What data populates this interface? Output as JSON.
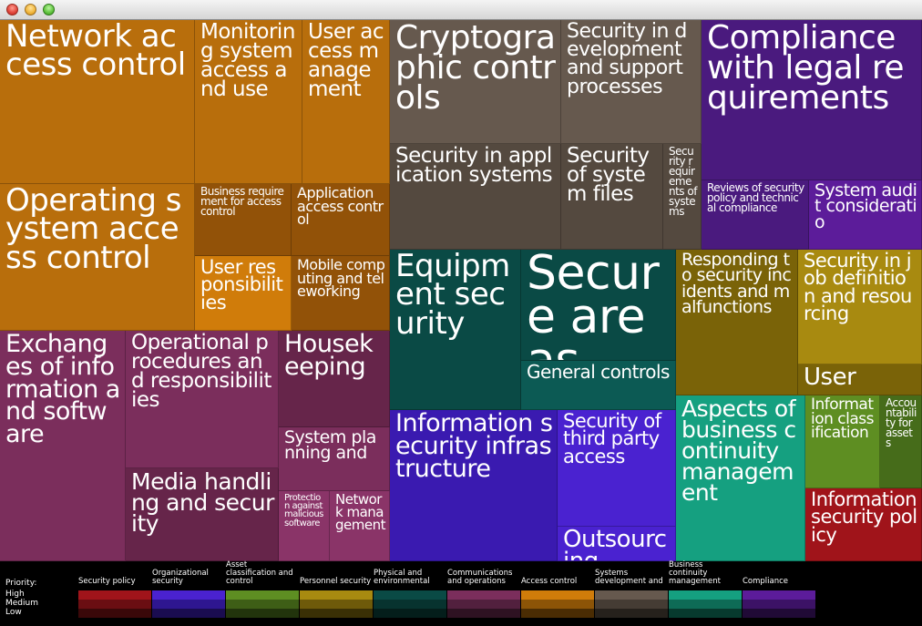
{
  "window": {
    "title": ""
  },
  "treemap": [
    {
      "label": "Network access control",
      "l": 0,
      "t": 0,
      "w": 214,
      "h": 180,
      "c": "#b86e0c",
      "fs": 34
    },
    {
      "label": "Operating system access control",
      "l": 0,
      "t": 180,
      "w": 214,
      "h": 161,
      "c": "#b86e0c",
      "fs": 34
    },
    {
      "label": "Monitoring system access and use",
      "l": 214,
      "t": 0,
      "w": 118,
      "h": 180,
      "c": "#b86e0c",
      "fs": 23
    },
    {
      "label": "User access management",
      "l": 332,
      "t": 0,
      "w": 96,
      "h": 180,
      "c": "#b86e0c",
      "fs": 23
    },
    {
      "label": "Business requirement for access control",
      "l": 214,
      "t": 180,
      "w": 106,
      "h": 79,
      "c": "#925208",
      "fs": 12
    },
    {
      "label": "Application access control",
      "l": 320,
      "t": 180,
      "w": 108,
      "h": 79,
      "c": "#925208",
      "fs": 16
    },
    {
      "label": "User responsibilities",
      "l": 214,
      "t": 259,
      "w": 106,
      "h": 82,
      "c": "#d07c0a",
      "fs": 21
    },
    {
      "label": "Mobile computing and teleworking",
      "l": 320,
      "t": 259,
      "w": 108,
      "h": 82,
      "c": "#925208",
      "fs": 16
    },
    {
      "label": "Exchanges of information and software",
      "l": 0,
      "t": 341,
      "w": 138,
      "h": 253,
      "c": "#7b2e5c",
      "fs": 27
    },
    {
      "label": "Operational procedures and responsibilities",
      "l": 138,
      "t": 341,
      "w": 168,
      "h": 151,
      "c": "#7b2e5c",
      "fs": 23
    },
    {
      "label": "Housekeeping",
      "l": 306,
      "t": 341,
      "w": 122,
      "h": 106,
      "c": "#66254a",
      "fs": 27
    },
    {
      "label": "System planning and",
      "l": 306,
      "t": 447,
      "w": 122,
      "h": 70,
      "c": "#7b2e5c",
      "fs": 19
    },
    {
      "label": "Media handling and security",
      "l": 138,
      "t": 492,
      "w": 168,
      "h": 102,
      "c": "#66254a",
      "fs": 25
    },
    {
      "label": "Protection against malicious software",
      "l": 306,
      "t": 517,
      "w": 56,
      "h": 77,
      "c": "#8a3468",
      "fs": 10
    },
    {
      "label": "Network management",
      "l": 362,
      "t": 517,
      "w": 66,
      "h": 77,
      "c": "#8a3468",
      "fs": 15
    },
    {
      "label": "Cryptographic controls",
      "l": 428,
      "t": 0,
      "w": 188,
      "h": 136,
      "c": "#66594e",
      "fs": 36
    },
    {
      "label": "Security in development and support processes",
      "l": 616,
      "t": 0,
      "w": 154,
      "h": 136,
      "c": "#66594e",
      "fs": 22
    },
    {
      "label": "Security in application systems",
      "l": 428,
      "t": 136,
      "w": 188,
      "h": 116,
      "c": "#54493f",
      "fs": 23
    },
    {
      "label": "Security of system files",
      "l": 616,
      "t": 136,
      "w": 112,
      "h": 116,
      "c": "#54493f",
      "fs": 23
    },
    {
      "label": "Security requirements of systems",
      "l": 728,
      "t": 136,
      "w": 42,
      "h": 116,
      "c": "#54493f",
      "fs": 12
    },
    {
      "label": "Compliance with legal requirements",
      "l": 770,
      "t": 0,
      "w": 242,
      "h": 176,
      "c": "#4a1a7e",
      "fs": 36
    },
    {
      "label": "Reviews of security policy and technical compliance",
      "l": 770,
      "t": 176,
      "w": 118,
      "h": 76,
      "c": "#4a1a7e",
      "fs": 12
    },
    {
      "label": "System audit consideratio",
      "l": 888,
      "t": 176,
      "w": 124,
      "h": 76,
      "c": "#5c1c9a",
      "fs": 19
    },
    {
      "label": "Equipment security",
      "l": 428,
      "t": 252,
      "w": 144,
      "h": 176,
      "c": "#0a4a45",
      "fs": 34
    },
    {
      "label": "Secure areas",
      "l": 572,
      "t": 252,
      "w": 170,
      "h": 122,
      "c": "#0a4a45",
      "fs": 52
    },
    {
      "label": "General controls",
      "l": 572,
      "t": 374,
      "w": 170,
      "h": 54,
      "c": "#0c5a54",
      "fs": 20
    },
    {
      "label": "Information security infrastructure",
      "l": 428,
      "t": 428,
      "w": 184,
      "h": 166,
      "c": "#3a1ab0",
      "fs": 27
    },
    {
      "label": "Security of third party access",
      "l": 612,
      "t": 428,
      "w": 130,
      "h": 128,
      "c": "#4a22d0",
      "fs": 21
    },
    {
      "label": "Outsourcing",
      "l": 612,
      "t": 556,
      "w": 130,
      "h": 38,
      "c": "#4a22d0",
      "fs": 26
    },
    {
      "label": "Responding to security incidents and malfunctions",
      "l": 742,
      "t": 252,
      "w": 134,
      "h": 160,
      "c": "#7a6308",
      "fs": 19
    },
    {
      "label": "Security in job definition and resourcing",
      "l": 876,
      "t": 252,
      "w": 136,
      "h": 126,
      "c": "#a88a10",
      "fs": 21
    },
    {
      "label": "User",
      "l": 876,
      "t": 378,
      "w": 136,
      "h": 34,
      "c": "#7a6308",
      "fs": 26
    },
    {
      "label": "Aspects of business continuity management",
      "l": 742,
      "t": 412,
      "w": 142,
      "h": 182,
      "c": "#15a080",
      "fs": 25
    },
    {
      "label": "Information classification",
      "l": 884,
      "t": 412,
      "w": 82,
      "h": 102,
      "c": "#5e8e22",
      "fs": 17
    },
    {
      "label": "Accountability for assets",
      "l": 966,
      "t": 412,
      "w": 46,
      "h": 102,
      "c": "#466c1a",
      "fs": 12
    },
    {
      "label": "Information security policy",
      "l": 884,
      "t": 514,
      "w": 128,
      "h": 80,
      "c": "#a0141a",
      "fs": 21
    }
  ],
  "legend": {
    "priority_label": "Priority:",
    "levels": [
      "High",
      "Medium",
      "Low"
    ],
    "categories": [
      {
        "name": "Security policy",
        "colors": [
          "#a0141a",
          "#6a0e12",
          "#3a0809"
        ]
      },
      {
        "name": "Organizational security",
        "colors": [
          "#4a22d0",
          "#2e1690",
          "#1a0c50"
        ]
      },
      {
        "name": "Asset classification and control",
        "colors": [
          "#5e8e22",
          "#3e5e16",
          "#22340c"
        ]
      },
      {
        "name": "Personnel security",
        "colors": [
          "#a88a10",
          "#6e5a0a",
          "#3a3005"
        ]
      },
      {
        "name": "Physical and environmental",
        "colors": [
          "#0a4a45",
          "#07332f",
          "#041e1b"
        ]
      },
      {
        "name": "Communications and operations",
        "colors": [
          "#7b2e5c",
          "#52203e",
          "#2e1222"
        ]
      },
      {
        "name": "Access control",
        "colors": [
          "#d07c0a",
          "#8c5407",
          "#4a2c03"
        ]
      },
      {
        "name": "Systems development and",
        "colors": [
          "#66594e",
          "#453c34",
          "#26211c"
        ]
      },
      {
        "name": "Business continuity management",
        "colors": [
          "#15a080",
          "#0e6b56",
          "#073a2e"
        ]
      },
      {
        "name": "Compliance",
        "colors": [
          "#5c1c9a",
          "#3c1266",
          "#200a36"
        ]
      }
    ]
  }
}
